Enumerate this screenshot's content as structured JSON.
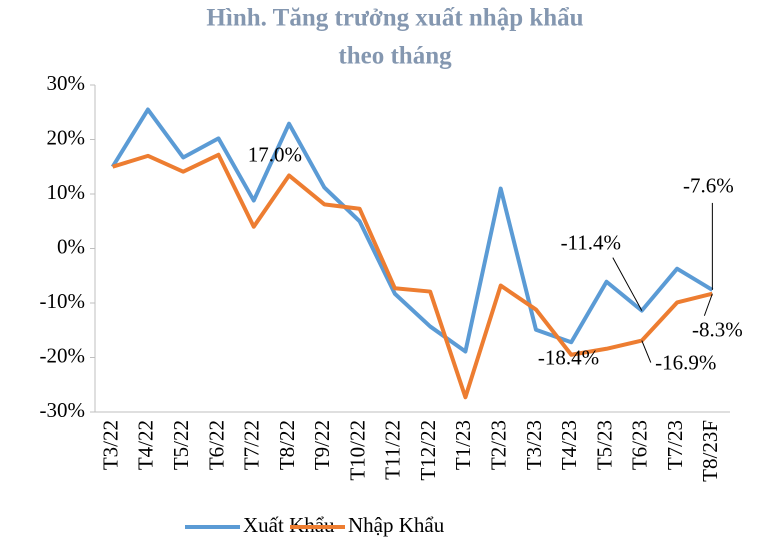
{
  "chart_data": {
    "type": "line",
    "title": [
      "Hình. Tăng trưởng xuất nhập khẩu",
      "theo tháng"
    ],
    "categories": [
      "T3/22",
      "T4/22",
      "T5/22",
      "T6/22",
      "T7/22",
      "T8/22",
      "T9/22",
      "T10/22",
      "T11/22",
      "T12/22",
      "T1/23",
      "T2/23",
      "T3/23",
      "T4/23",
      "T5/23",
      "T6/23",
      "T7/23",
      "T8/23F"
    ],
    "series": [
      {
        "name": "Xuất Khẩu",
        "color": "#5b9bd5",
        "values": [
          15.0,
          25.5,
          16.7,
          20.2,
          8.8,
          22.9,
          11.2,
          5.0,
          -8.3,
          -14.3,
          -18.9,
          11.0,
          -14.9,
          -17.2,
          -6.1,
          -11.4,
          -3.7,
          -7.6
        ],
        "value_labels": [
          null,
          null,
          null,
          null,
          null,
          null,
          null,
          null,
          null,
          null,
          null,
          null,
          null,
          null,
          null,
          "-11.4%",
          null,
          "-7.6%"
        ]
      },
      {
        "name": "Nhập Khẩu",
        "color": "#ed7d31",
        "values": [
          15.0,
          17.0,
          14.1,
          17.2,
          4.0,
          13.4,
          8.1,
          7.3,
          -7.3,
          -7.9,
          -27.3,
          -6.8,
          -11.2,
          -19.5,
          -18.4,
          -16.9,
          -9.9,
          -8.3
        ],
        "value_labels": [
          null,
          "17.0%",
          null,
          null,
          null,
          null,
          null,
          null,
          null,
          null,
          null,
          null,
          null,
          null,
          "-18.4%",
          "-16.9%",
          null,
          "-8.3%"
        ]
      }
    ],
    "ylim": [
      -30,
      30
    ],
    "yticks": [
      {
        "value": -30,
        "label": "-30%"
      },
      {
        "value": -20,
        "label": "-20%"
      },
      {
        "value": -10,
        "label": "-10%"
      },
      {
        "value": 0,
        "label": "0%"
      },
      {
        "value": 10,
        "label": "10%"
      },
      {
        "value": 20,
        "label": "20%"
      },
      {
        "value": 30,
        "label": "30%"
      }
    ],
    "legend": "bottom"
  }
}
